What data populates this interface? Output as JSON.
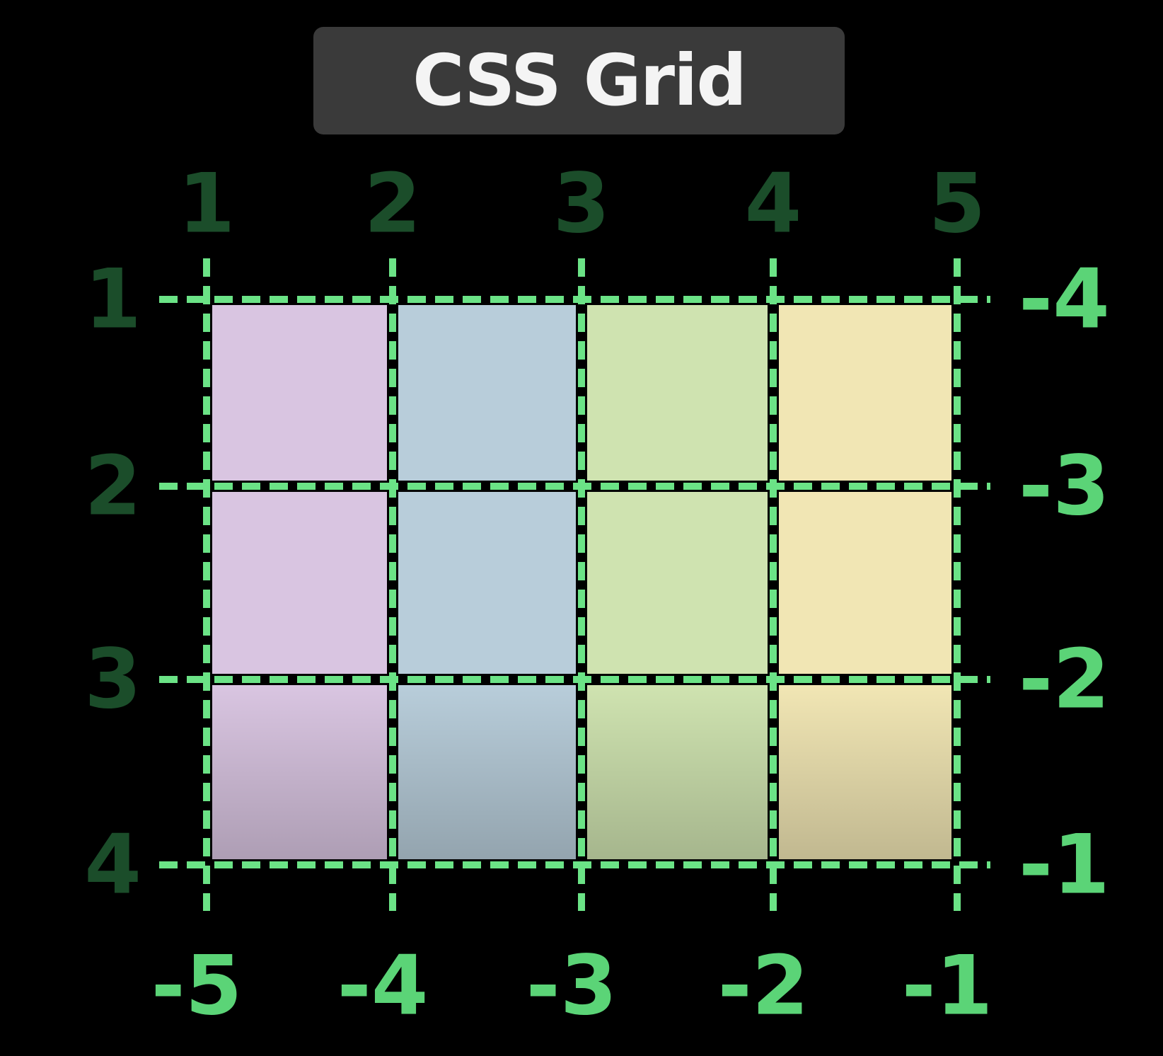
{
  "title": "CSS Grid",
  "columns_count": 4,
  "rows_count": 3,
  "column_lines": {
    "positive": [
      "1",
      "2",
      "3",
      "4",
      "5"
    ],
    "negative": [
      "-5",
      "-4",
      "-3",
      "-2",
      "-1"
    ]
  },
  "row_lines": {
    "positive": [
      "1",
      "2",
      "3",
      "4"
    ],
    "negative": [
      "-4",
      "-3",
      "-2",
      "-1"
    ]
  },
  "column_colors": [
    "#d9c5e1",
    "#b8cdda",
    "#cfe3b0",
    "#f1e6b4"
  ],
  "colors": {
    "grid_line": "#6be386",
    "positive_label": "#1b4d2a",
    "negative_label": "#5bd477",
    "background": "#000000",
    "title_background": "#3a3a3a",
    "title_text": "#f4f4f4"
  }
}
